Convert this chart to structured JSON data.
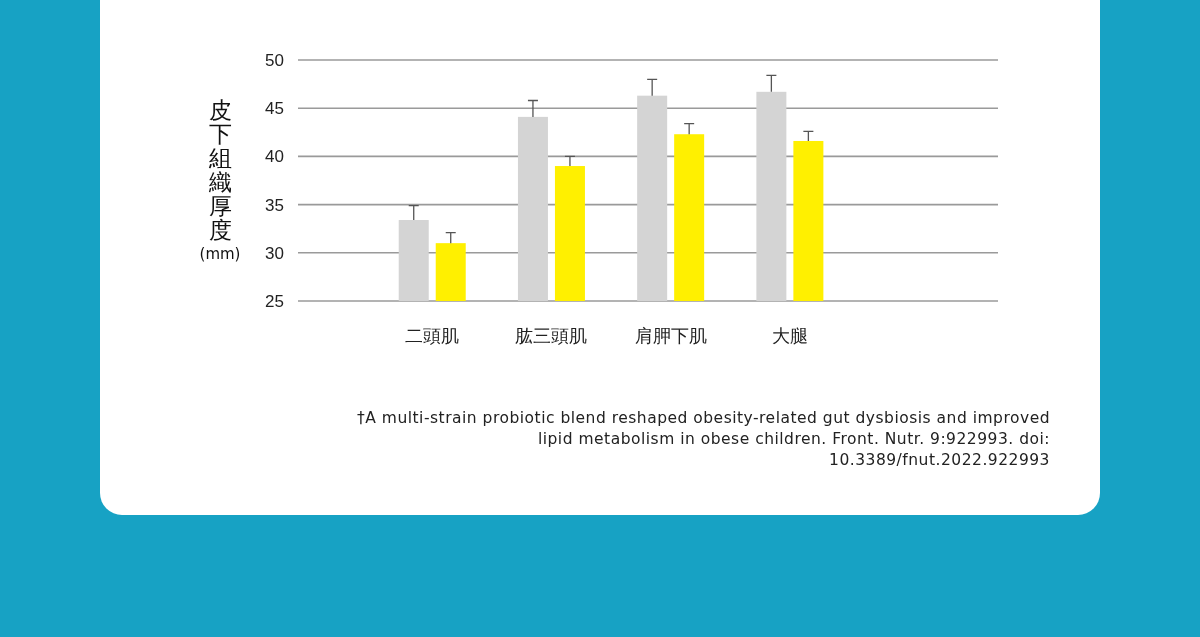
{
  "chart_data": {
    "type": "bar",
    "ylabel": "皮下組織厚度(mm)",
    "categories": [
      "二頭肌",
      "肱三頭肌",
      "肩胛下肌",
      "大腿"
    ],
    "series": [
      {
        "color": "#d4d4d4",
        "values": [
          33.4,
          44.1,
          46.3,
          46.7
        ],
        "errors": [
          [
            33.4,
            34.9
          ],
          [
            44.1,
            45.8
          ],
          [
            46.3,
            48.0
          ],
          [
            46.7,
            48.4
          ]
        ]
      },
      {
        "color": "#fff000",
        "values": [
          31.0,
          39.0,
          42.3,
          41.6
        ],
        "errors": [
          [
            31.0,
            32.1
          ],
          [
            39.0,
            40.0
          ],
          [
            42.3,
            43.4
          ],
          [
            41.6,
            42.6
          ]
        ]
      }
    ],
    "ylim": [
      25,
      50
    ],
    "yticks": [
      25,
      30,
      35,
      40,
      45,
      50
    ],
    "grid": "y",
    "annotations": [
      "†A multi-strain probiotic blend reshaped obesity-related gut dysbiosis and improved lipid metabolism in obese children. Front. Nutr. 9:922993. doi: 10.3389/fnut.2022.922993"
    ]
  }
}
